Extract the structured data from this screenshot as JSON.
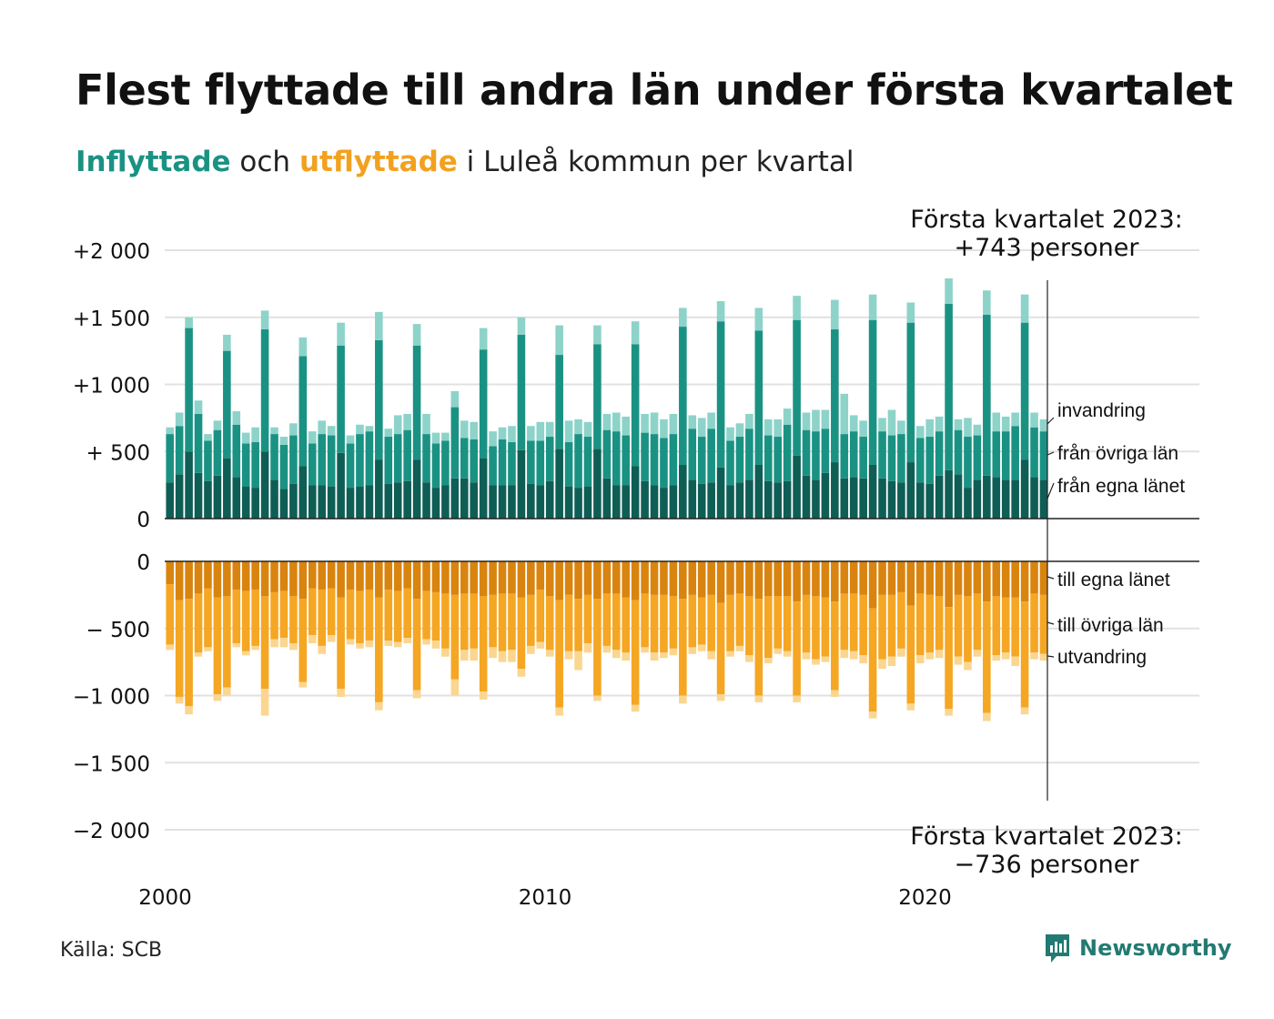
{
  "title": "Flest flyttade till andra län under första kvartalet",
  "subtitle": {
    "in_word": "Inflyttade",
    "mid_word": " och ",
    "out_word": "utflyttade",
    "rest": " i Luleå kommun per kvartal"
  },
  "source": "Källa: SCB",
  "logo_text": "Newsworthy",
  "colors": {
    "in_own": "#0f5e56",
    "in_other": "#1a9283",
    "in_immig": "#8dd3c9",
    "out_own": "#d9840f",
    "out_other": "#f5a623",
    "out_emig": "#fbd690"
  },
  "chart_data": {
    "type": "bar",
    "stacked": true,
    "x_start": 2000,
    "x_ticks": [
      "2000",
      "2010",
      "2020"
    ],
    "y_ticks_top": [
      "+2 000",
      "+1 500",
      "+1 000",
      "+  500",
      "0"
    ],
    "y_ticks_bottom": [
      "0",
      "−  500",
      "−1 000",
      "−1 500",
      "−2 000"
    ],
    "ylim_top": [
      0,
      2000
    ],
    "ylim_bottom": [
      -2000,
      0
    ],
    "grid": true,
    "annotation_top": {
      "line1": "Första kvartalet 2023:",
      "line2": "+743 personer"
    },
    "annotation_bottom": {
      "line1": "Första kvartalet 2023:",
      "line2": "−736 personer"
    },
    "legend_in": [
      "invandring",
      "från övriga län",
      "från egna länet"
    ],
    "legend_out": [
      "till egna länet",
      "till övriga län",
      "utvandring"
    ],
    "inflow": {
      "own": [
        270,
        330,
        500,
        340,
        280,
        320,
        450,
        310,
        240,
        230,
        500,
        290,
        220,
        260,
        390,
        250,
        250,
        240,
        490,
        230,
        240,
        250,
        440,
        260,
        270,
        280,
        440,
        270,
        230,
        250,
        300,
        300,
        270,
        450,
        250,
        250,
        250,
        510,
        260,
        250,
        280,
        520,
        240,
        230,
        240,
        520,
        300,
        250,
        250,
        390,
        280,
        250,
        230,
        250,
        400,
        290,
        260,
        270,
        380,
        250,
        270,
        290,
        400,
        280,
        270,
        280,
        470,
        320,
        290,
        340,
        420,
        300,
        310,
        300,
        400,
        300,
        280,
        270,
        420,
        270,
        260,
        320,
        360,
        330,
        230,
        290,
        320,
        310,
        290,
        290,
        440,
        310,
        290
      ],
      "other": [
        360,
        360,
        920,
        440,
        300,
        340,
        800,
        390,
        320,
        340,
        910,
        340,
        330,
        360,
        820,
        310,
        380,
        380,
        800,
        330,
        390,
        400,
        890,
        350,
        360,
        380,
        850,
        360,
        330,
        330,
        530,
        300,
        320,
        810,
        290,
        340,
        320,
        860,
        320,
        330,
        330,
        700,
        330,
        400,
        370,
        780,
        360,
        400,
        370,
        910,
        360,
        380,
        370,
        380,
        1030,
        380,
        350,
        400,
        1090,
        330,
        340,
        380,
        1000,
        340,
        340,
        420,
        1010,
        340,
        360,
        330,
        990,
        330,
        340,
        310,
        1080,
        350,
        340,
        360,
        1040,
        330,
        350,
        330,
        1240,
        330,
        380,
        330,
        1200,
        340,
        360,
        400,
        1020,
        370,
        360
      ],
      "immig": [
        50,
        100,
        80,
        100,
        50,
        70,
        120,
        100,
        80,
        110,
        140,
        50,
        60,
        90,
        140,
        90,
        100,
        70,
        170,
        60,
        70,
        40,
        210,
        60,
        140,
        120,
        160,
        150,
        80,
        60,
        120,
        130,
        130,
        160,
        110,
        90,
        120,
        130,
        110,
        140,
        110,
        220,
        160,
        110,
        110,
        140,
        120,
        140,
        140,
        170,
        140,
        160,
        140,
        150,
        140,
        100,
        140,
        120,
        150,
        100,
        100,
        110,
        170,
        120,
        130,
        120,
        180,
        130,
        160,
        140,
        220,
        300,
        120,
        120,
        190,
        100,
        190,
        100,
        150,
        90,
        130,
        110,
        190,
        80,
        140,
        80,
        180,
        140,
        110,
        100,
        210,
        110,
        90
      ]
    },
    "outflow": {
      "own": [
        170,
        290,
        280,
        240,
        200,
        270,
        260,
        210,
        220,
        210,
        260,
        230,
        220,
        260,
        280,
        200,
        210,
        200,
        270,
        210,
        220,
        210,
        270,
        210,
        220,
        200,
        280,
        220,
        230,
        240,
        250,
        240,
        240,
        260,
        250,
        240,
        240,
        270,
        250,
        210,
        260,
        290,
        250,
        280,
        250,
        280,
        240,
        240,
        270,
        290,
        240,
        250,
        250,
        260,
        280,
        250,
        270,
        250,
        310,
        250,
        240,
        260,
        280,
        260,
        260,
        260,
        300,
        250,
        260,
        270,
        300,
        240,
        240,
        250,
        350,
        250,
        250,
        230,
        330,
        240,
        250,
        260,
        340,
        250,
        260,
        240,
        300,
        260,
        270,
        270,
        300,
        240,
        250
      ],
      "other": [
        450,
        720,
        800,
        440,
        440,
        720,
        680,
        400,
        450,
        420,
        690,
        350,
        350,
        350,
        620,
        350,
        420,
        350,
        680,
        370,
        390,
        380,
        780,
        380,
        380,
        370,
        680,
        360,
        360,
        410,
        630,
        420,
        410,
        710,
        390,
        430,
        420,
        530,
        380,
        390,
        400,
        800,
        420,
        390,
        360,
        720,
        390,
        420,
        410,
        780,
        400,
        430,
        430,
        390,
        720,
        390,
        350,
        420,
        680,
        420,
        390,
        440,
        720,
        460,
        390,
        410,
        700,
        430,
        470,
        440,
        660,
        420,
        430,
        450,
        770,
        480,
        460,
        420,
        730,
        460,
        430,
        400,
        760,
        460,
        490,
        420,
        830,
        440,
        410,
        440,
        790,
        440,
        440
      ],
      "emig": [
        40,
        50,
        60,
        30,
        30,
        50,
        60,
        30,
        30,
        30,
        200,
        60,
        70,
        50,
        40,
        60,
        60,
        50,
        60,
        40,
        40,
        50,
        60,
        40,
        40,
        40,
        60,
        40,
        60,
        60,
        120,
        80,
        90,
        60,
        80,
        80,
        90,
        60,
        60,
        50,
        50,
        60,
        60,
        140,
        70,
        40,
        50,
        60,
        60,
        50,
        40,
        60,
        40,
        50,
        60,
        50,
        50,
        60,
        50,
        40,
        40,
        50,
        50,
        40,
        40,
        40,
        50,
        50,
        40,
        40,
        50,
        60,
        60,
        60,
        50,
        70,
        70,
        60,
        50,
        60,
        50,
        60,
        50,
        60,
        60,
        50,
        60,
        40,
        50,
        70,
        50,
        50,
        50
      ]
    }
  }
}
